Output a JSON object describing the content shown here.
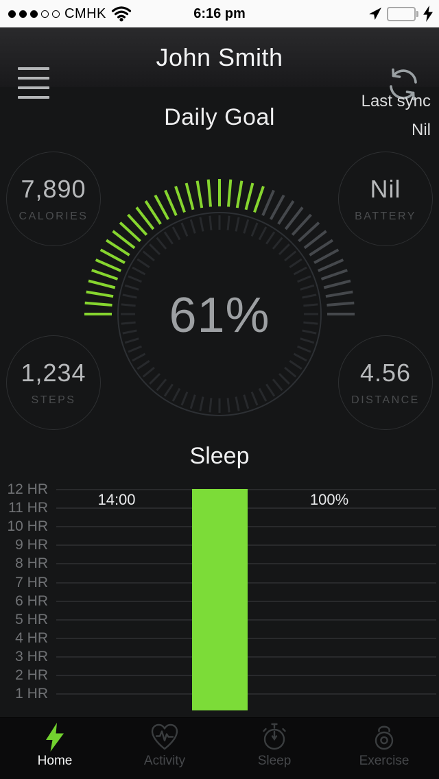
{
  "status_bar": {
    "signal_dots_filled": 3,
    "signal_dots_total": 5,
    "carrier": "CMHK",
    "time": "6:16 pm",
    "icons": [
      "wifi-icon",
      "location-arrow-icon",
      "battery-icon",
      "charging-bolt-icon"
    ],
    "battery_charging": true
  },
  "header": {
    "title": "John Smith",
    "icons": [
      "menu-icon",
      "sync-icon"
    ]
  },
  "sync_info": {
    "label": "Last sync",
    "value": "Nil"
  },
  "daily_goal": {
    "title": "Daily Goal",
    "percent": 61,
    "percent_display": "61%",
    "stats": [
      {
        "value": "7,890",
        "label": "CALORIES"
      },
      {
        "value": "Nil",
        "label": "BATTERY"
      },
      {
        "value": "1,234",
        "label": "STEPS"
      },
      {
        "value": "4.56",
        "label": "DISTANCE"
      }
    ]
  },
  "chart_data": {
    "type": "bar",
    "title": "Sleep",
    "y_tick_labels": [
      "12 HR",
      "11 HR",
      "10 HR",
      "9 HR",
      "8 HR",
      "7 HR",
      "6 HR",
      "5 HR",
      "4 HR",
      "3 HR",
      "2 HR",
      "1 HR"
    ],
    "y_unit": "hours",
    "ylim": [
      0,
      12
    ],
    "grid": true,
    "bars": [
      {
        "hours": 12,
        "color": "#7cdc38"
      }
    ],
    "annotations": [
      {
        "text": "14:00",
        "position": "left"
      },
      {
        "text": "100%",
        "position": "right"
      }
    ]
  },
  "tab_bar": {
    "items": [
      {
        "label": "Home",
        "icon": "lightning-icon",
        "active": true
      },
      {
        "label": "Activity",
        "icon": "heart-pulse-icon",
        "active": false
      },
      {
        "label": "Sleep",
        "icon": "stopwatch-icon",
        "active": false
      },
      {
        "label": "Exercise",
        "icon": "kettlebell-icon",
        "active": false
      }
    ]
  },
  "colors": {
    "background": "#151617",
    "status_bar_bg": "#fafafa",
    "accent_green": "#7cdc38",
    "gauge_green": "#86d52f",
    "gauge_tick_gray": "#45484c",
    "gauge_inner_tick": "#27292c",
    "gauge_ring": "#2d3034",
    "battery_green": "#57d769",
    "tab_bar_bg": "#0b0b0c",
    "active_tab_green": "#72d22f"
  }
}
